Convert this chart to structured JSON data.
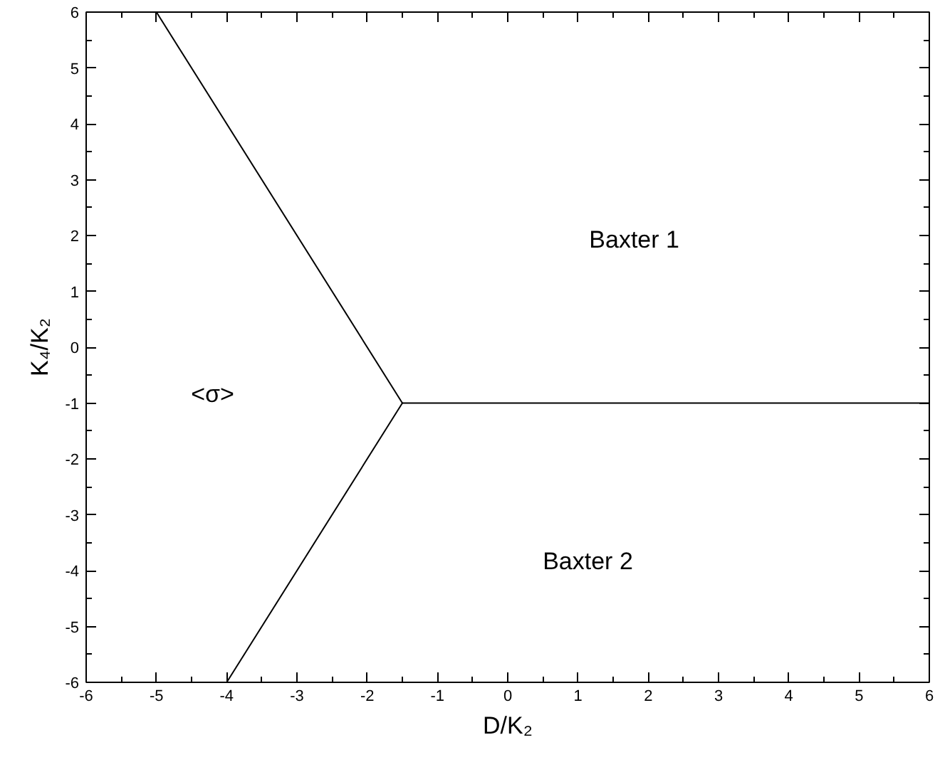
{
  "chart_data": {
    "type": "line",
    "xlabel": "D/K₂",
    "ylabel": "K₄/K₂",
    "xlim": [
      -6,
      6
    ],
    "ylim": [
      -6,
      6
    ],
    "xticks": [
      -6,
      -5,
      -4,
      -3,
      -2,
      -1,
      0,
      1,
      2,
      3,
      4,
      5,
      6
    ],
    "yticks": [
      -6,
      -5,
      -4,
      -3,
      -2,
      -1,
      0,
      1,
      2,
      3,
      4,
      5,
      6
    ],
    "grid": false,
    "marker": "none",
    "line_style": "solid",
    "series": [
      {
        "color": "#000000",
        "x": [
          -5,
          -1.5
        ],
        "values": [
          6,
          -1
        ]
      },
      {
        "color": "#000000",
        "x": [
          -1.5,
          6
        ],
        "values": [
          -1,
          -1
        ]
      },
      {
        "color": "#000000",
        "x": [
          -1.5,
          -4
        ],
        "values": [
          -1,
          -6
        ]
      }
    ],
    "annotations": [
      "Baxter 1",
      "<σ>",
      "Baxter 2"
    ]
  }
}
